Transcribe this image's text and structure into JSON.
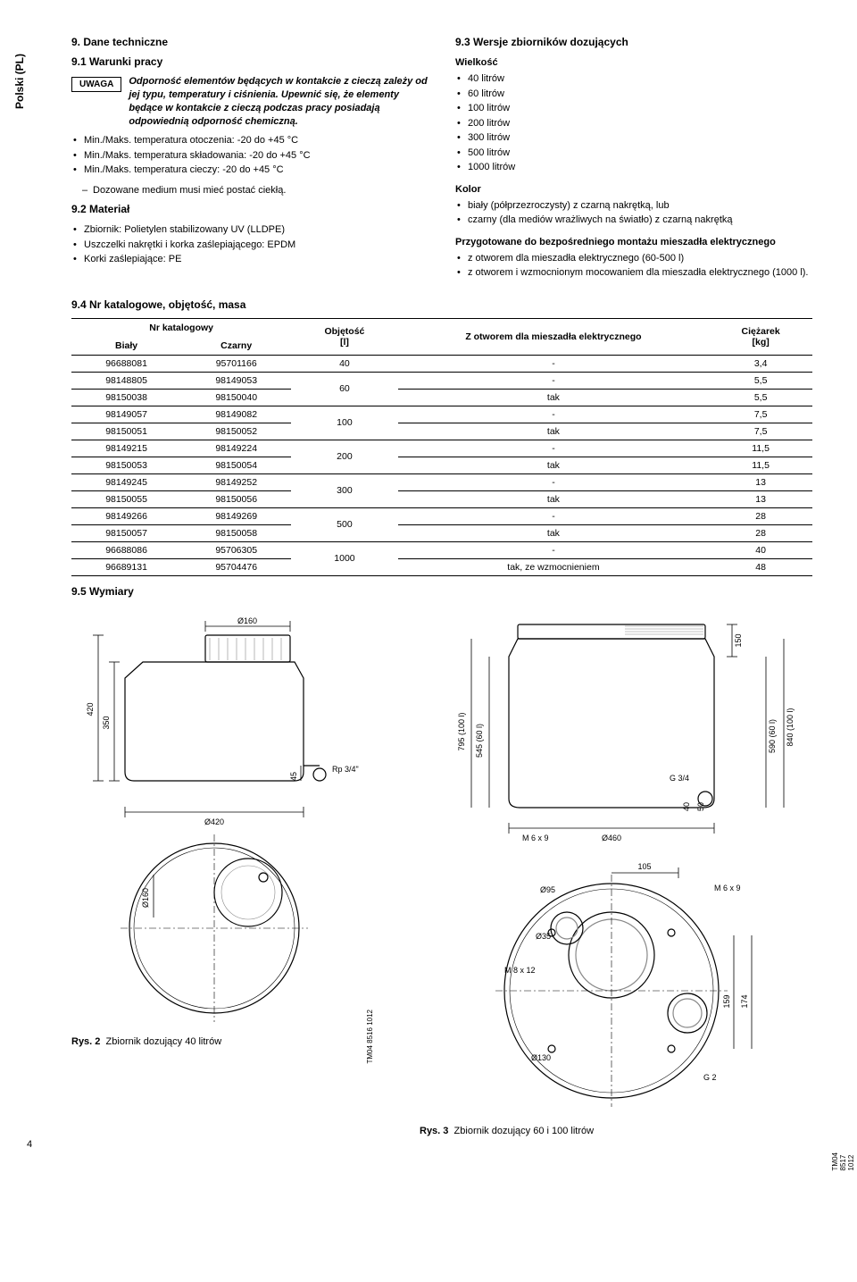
{
  "sideTab": "Polski (PL)",
  "sec9": {
    "title": "9. Dane techniczne",
    "s91": {
      "title": "9.1 Warunki pracy",
      "noticeLabel": "UWAGA",
      "noticeText": "Odporność elementów będących w kontakcie z cieczą zależy od jej typu, temperatury i ciśnienia. Upewnić się, że elementy będące w kontakcie z cieczą podczas pracy posiadają odpowiednią odporność chemiczną.",
      "bullets": [
        "Min./Maks. temperatura otoczenia: -20 do +45 °C",
        "Min./Maks. temperatura składowania: -20 do +45 °C",
        "Min./Maks. temperatura cieczy: -20 do +45 °C"
      ],
      "subBullet": "Dozowane medium musi mieć postać ciekłą."
    },
    "s92": {
      "title": "9.2 Materiał",
      "bullets": [
        "Zbiornik: Polietylen stabilizowany UV (LLDPE)",
        "Uszczelki nakrętki i korka zaślepiającego: EPDM",
        "Korki zaślepiające: PE"
      ]
    },
    "s93": {
      "title": "9.3 Wersje zbiorników dozujących",
      "sizeLabel": "Wielkość",
      "sizes": [
        "40 litrów",
        "60 litrów",
        "100 litrów",
        "200 litrów",
        "300 litrów",
        "500 litrów",
        "1000 litrów"
      ],
      "colorLabel": "Kolor",
      "colors": [
        "biały (półprzezroczysty) z czarną nakrętką, lub",
        "czarny (dla mediów wrażliwych na światło) z czarną nakrętką"
      ],
      "prepLabel": "Przygotowane do bezpośredniego montażu mieszadła elektrycznego",
      "prep": [
        "z otworem dla mieszadła elektrycznego (60-500 l)",
        "z otworem i wzmocnionym mocowaniem dla mieszadła elektrycznego (1000 l)."
      ]
    },
    "s94": {
      "title": "9.4 Nr katalogowe, objętość, masa",
      "headers": {
        "catGroup": "Nr katalogowy",
        "white": "Biały",
        "black": "Czarny",
        "vol": "Objętość\n[l]",
        "mixer": "Z otworem dla mieszadła elektrycznego",
        "weight": "Ciężarek\n[kg]"
      },
      "rows": [
        {
          "w": "96688081",
          "b": "95701166",
          "v": "40",
          "m": "-",
          "kg": "3,4",
          "span": 1
        },
        {
          "w": "98148805",
          "b": "98149053",
          "v": "60",
          "m": "-",
          "kg": "5,5",
          "span": 2
        },
        {
          "w": "98150038",
          "b": "98150040",
          "v": "",
          "m": "tak",
          "kg": "5,5",
          "span": 0
        },
        {
          "w": "98149057",
          "b": "98149082",
          "v": "100",
          "m": "-",
          "kg": "7,5",
          "span": 2
        },
        {
          "w": "98150051",
          "b": "98150052",
          "v": "",
          "m": "tak",
          "kg": "7,5",
          "span": 0
        },
        {
          "w": "98149215",
          "b": "98149224",
          "v": "200",
          "m": "-",
          "kg": "11,5",
          "span": 2
        },
        {
          "w": "98150053",
          "b": "98150054",
          "v": "",
          "m": "tak",
          "kg": "11,5",
          "span": 0
        },
        {
          "w": "98149245",
          "b": "98149252",
          "v": "300",
          "m": "-",
          "kg": "13",
          "span": 2
        },
        {
          "w": "98150055",
          "b": "98150056",
          "v": "",
          "m": "tak",
          "kg": "13",
          "span": 0
        },
        {
          "w": "98149266",
          "b": "98149269",
          "v": "500",
          "m": "-",
          "kg": "28",
          "span": 2
        },
        {
          "w": "98150057",
          "b": "98150058",
          "v": "",
          "m": "tak",
          "kg": "28",
          "span": 0
        },
        {
          "w": "96688086",
          "b": "95706305",
          "v": "1000",
          "m": "-",
          "kg": "40",
          "span": 2
        },
        {
          "w": "96689131",
          "b": "95704476",
          "v": "",
          "m": "tak, ze wzmocnieniem",
          "kg": "48",
          "span": 0
        }
      ]
    },
    "s95": {
      "title": "9.5 Wymiary"
    },
    "fig2": {
      "label": "Rys. 2",
      "text": "Zbiornik dozujący 40 litrów",
      "ref": "TM04 8516 1012",
      "dims": {
        "d160": "Ø160",
        "h420": "420",
        "h350": "350",
        "h45": "45",
        "rp": "Rp 3/4\"",
        "d420": "Ø420",
        "d160b": "Ø160"
      }
    },
    "fig3": {
      "label": "Rys. 3",
      "text": "Zbiornik dozujący 60 i 100 litrów",
      "ref": "TM04 8517 1012",
      "dims": {
        "h150": "150",
        "h795": "795 (100 l)",
        "h545": "545 (60 l)",
        "h590": "590 (60 l)",
        "h840": "840 (100 l)",
        "g34": "G 3/4",
        "h40": "40",
        "h50": "50",
        "m6": "M 6 x 9",
        "d460": "Ø460",
        "l105": "105",
        "d95": "Ø95",
        "m6b": "M 6 x 9",
        "d35": "Ø35",
        "m8": "M 8 x 12",
        "h159": "159",
        "h174": "174",
        "d130": "Ø130",
        "g2": "G 2"
      }
    }
  },
  "pageNum": "4",
  "colors": {
    "line": "#000000",
    "gray": "#888888",
    "lightgray": "#c8c8c8"
  }
}
